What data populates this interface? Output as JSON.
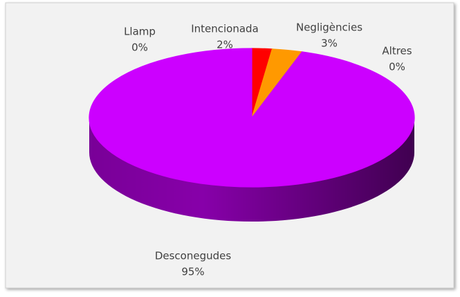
{
  "chart_data": {
    "type": "pie",
    "categories": [
      "Llamp",
      "Intencionada",
      "Negligències",
      "Altres",
      "Desconegudes"
    ],
    "values": [
      0,
      2,
      3,
      0,
      95
    ],
    "value_labels": [
      "0%",
      "2%",
      "3%",
      "0%",
      "95%"
    ],
    "colors": [
      "#4f81bd",
      "#ff0000",
      "#ff9900",
      "#66cc33",
      "#cc00ff"
    ]
  }
}
